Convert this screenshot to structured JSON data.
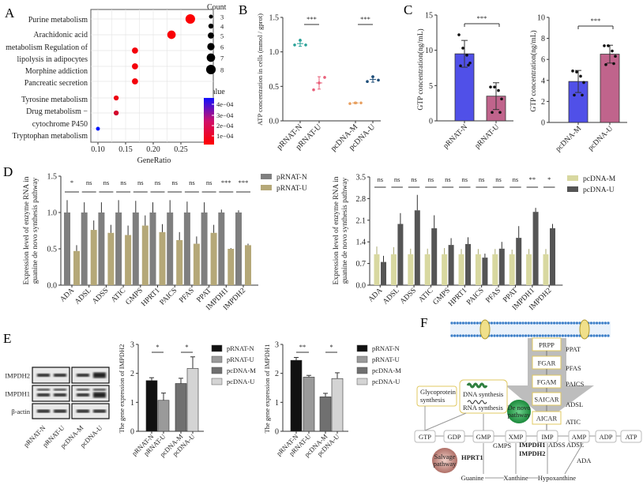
{
  "panels": {
    "A": "A",
    "B": "B",
    "C": "C",
    "D": "D",
    "E": "E",
    "F": "F"
  },
  "chart_data": [
    {
      "type": "scatter",
      "panel": "A",
      "xlabel": "GeneRatio",
      "xticks": [
        "0.10",
        "0.15",
        "0.20",
        "0.25"
      ],
      "xlim": [
        0.095,
        0.28
      ],
      "grid": true,
      "y_label_lines": [
        "Purine metabolism",
        "Arachidonic acid",
        "metabolism Regulation of",
        "lipolysis in adipocytes",
        "Morphine addiction",
        "Pancreatic secretion",
        "Tyrosine metabolism",
        "Drug metabolism −",
        "cytochrome P450",
        "Tryptophan metabolism"
      ],
      "points": [
        {
          "term": "Purine metabolism",
          "x": 0.267,
          "count": 8,
          "pvalue": 5e-06
        },
        {
          "term": "Arachidonic acid metabolism",
          "x": 0.233,
          "count": 7,
          "pvalue": 1e-05
        },
        {
          "term": "Regulation of lipolysis in adipocytes",
          "x": 0.167,
          "count": 5,
          "pvalue": 2e-05
        },
        {
          "term": "Morphine addiction",
          "x": 0.167,
          "count": 5,
          "pvalue": 2e-05
        },
        {
          "term": "Pancreatic secretion",
          "x": 0.167,
          "count": 5,
          "pvalue": 2e-05
        },
        {
          "term": "Tyrosine metabolism",
          "x": 0.133,
          "count": 4,
          "pvalue": 3e-05
        },
        {
          "term": "Drug metabolism - cytochrome P450",
          "x": 0.133,
          "count": 4,
          "pvalue": 8e-05
        },
        {
          "term": "Tryptophan metabolism",
          "x": 0.1,
          "count": 3,
          "pvalue": 0.00046
        }
      ],
      "size_legend": {
        "title": "Count",
        "values": [
          "3",
          "4",
          "5",
          "6",
          "7",
          "8"
        ]
      },
      "color_legend": {
        "title": "pvalue",
        "ticks": [
          "4e−04",
          "3e−04",
          "2e−04",
          "1e−04"
        ],
        "low_color": "#ff0000",
        "high_color": "#0000ff"
      },
      "legend_position": "right"
    },
    {
      "type": "scatter",
      "panel": "B",
      "ylabel": "ATP concentration in cells (mmol / gprot)",
      "ylim": [
        0,
        1.5
      ],
      "yticks": [
        "0.0",
        "0.5",
        "1.0",
        "1.5"
      ],
      "categories": [
        "pRNAT-N",
        "pRNAT-U",
        "pcDNA-M",
        "pcDNA-U"
      ],
      "points": [
        [
          1.1,
          1.17,
          1.1
        ],
        [
          0.45,
          0.55,
          0.63
        ],
        [
          0.25,
          0.26,
          0.26
        ],
        [
          0.57,
          0.64,
          0.59
        ]
      ],
      "means": [
        1.12,
        0.55,
        0.26,
        0.6
      ],
      "sd": [
        0.04,
        0.09,
        0.01,
        0.04
      ],
      "colors": [
        "#2aa198",
        "#e8607a",
        "#e8a060",
        "#1f4e79"
      ],
      "significance": [
        {
          "pair": [
            "pRNAT-N",
            "pRNAT-U"
          ],
          "label": "***"
        },
        {
          "pair": [
            "pcDNA-M",
            "pcDNA-U"
          ],
          "label": "***"
        }
      ]
    },
    {
      "type": "bar",
      "panel": "C",
      "ylabel": "GTP concentration(ng/mL)",
      "ylim": [
        0,
        15
      ],
      "yticks": [
        "0",
        "5",
        "10",
        "15"
      ],
      "categories": [
        "pRNAT-N",
        "pRNAT-U"
      ],
      "values": [
        9.5,
        3.5
      ],
      "sd": [
        1.9,
        1.9
      ],
      "points": [
        [
          12.2,
          10.3,
          9.3,
          8.2,
          7.8,
          7.9
        ],
        [
          4.8,
          4.8,
          4.3,
          3.1,
          1.2,
          1.2
        ]
      ],
      "colors": [
        "#5050e8",
        "#c0648c"
      ],
      "significance": [
        {
          "pair": [
            "pRNAT-N",
            "pRNAT-U"
          ],
          "label": "***"
        }
      ]
    },
    {
      "type": "bar",
      "panel": "C",
      "ylabel": "GTP concentration(ng/mL)",
      "ylim": [
        0,
        10
      ],
      "yticks": [
        "0",
        "2",
        "4",
        "6",
        "8",
        "10"
      ],
      "categories": [
        "pcDNA-M",
        "pcDNA-U"
      ],
      "values": [
        3.9,
        6.5
      ],
      "sd": [
        1.05,
        0.85
      ],
      "points": [
        [
          4.9,
          4.8,
          4.4,
          3.8,
          2.6,
          2.6
        ],
        [
          7.3,
          7.3,
          6.8,
          6.3,
          5.5,
          5.6
        ]
      ],
      "colors": [
        "#5050e8",
        "#c0648c"
      ],
      "significance": [
        {
          "pair": [
            "pcDNA-M",
            "pcDNA-U"
          ],
          "label": "***"
        }
      ]
    },
    {
      "type": "bar",
      "panel": "D",
      "ylabel_lines": [
        "Expression level of enzyme RNA in",
        "guanine de novo synthesis pathway"
      ],
      "ylim": [
        0,
        1.5
      ],
      "yticks": [
        "0.0",
        "0.5",
        "1.0",
        "1.5"
      ],
      "categories": [
        "ADA",
        "ADSL",
        "ADSS",
        "ATIC",
        "GMPS",
        "HPRT1",
        "PAICS",
        "PFAS",
        "PPAT",
        "IMPDH1",
        "IMPDH2"
      ],
      "series": [
        {
          "name": "pRNAT-N",
          "color": "#7f7f7f",
          "values": [
            1,
            1,
            1,
            1,
            1,
            1,
            1,
            1,
            1,
            1,
            1
          ],
          "err": [
            0.17,
            0.14,
            0.14,
            0.17,
            0.16,
            0.14,
            0.17,
            0.15,
            0.14,
            0.04,
            0.03
          ]
        },
        {
          "name": "pRNAT-U",
          "color": "#b5a878",
          "values": [
            0.47,
            0.76,
            0.72,
            0.69,
            0.82,
            0.73,
            0.62,
            0.57,
            0.72,
            0.5,
            0.55
          ],
          "err": [
            0.08,
            0.13,
            0.11,
            0.13,
            0.14,
            0.11,
            0.11,
            0.1,
            0.11,
            0.01,
            0.02
          ]
        }
      ],
      "significance": [
        "*",
        "ns",
        "ns",
        "ns",
        "ns",
        "ns",
        "ns",
        "ns",
        "ns",
        "***",
        "***"
      ],
      "legend_position": "right"
    },
    {
      "type": "bar",
      "panel": "D",
      "ylabel_lines": [
        "Expression level of enzyme RNA in",
        "guanine de novo synthesis pathway"
      ],
      "ylim": [
        0,
        3.5
      ],
      "yticks": [
        "0.0",
        "0.7",
        "1.4",
        "2.1",
        "2.8",
        "3.5"
      ],
      "categories": [
        "ADA",
        "ADSL",
        "ADSS",
        "ATIC",
        "GMPS",
        "HPRT1",
        "PAICS",
        "PFAS",
        "PPAT",
        "IMPDH1",
        "IMPDH2"
      ],
      "series": [
        {
          "name": "pcDNA-M",
          "color": "#d8d8a0",
          "values": [
            1,
            1,
            1,
            1,
            1,
            1,
            1,
            1,
            1,
            1,
            1
          ],
          "err": [
            0.25,
            0.23,
            0.18,
            0.18,
            0.2,
            0.17,
            0.17,
            0.17,
            0.15,
            0.17,
            0.17
          ]
        },
        {
          "name": "pcDNA-U",
          "color": "#555555",
          "values": [
            0.75,
            1.98,
            2.42,
            1.84,
            1.3,
            1.33,
            0.89,
            1.18,
            1.53,
            2.37,
            1.84
          ],
          "err": [
            0.2,
            0.35,
            0.5,
            0.42,
            0.22,
            0.22,
            0.13,
            0.22,
            0.38,
            0.13,
            0.14
          ]
        }
      ],
      "significance": [
        "ns",
        "ns",
        "ns",
        "ns",
        "ns",
        "ns",
        "ns",
        "ns",
        "ns",
        "**",
        "*"
      ],
      "legend_position": "right"
    },
    {
      "type": "bar",
      "panel": "E",
      "ylabel": "The gene expression of IMPDH2",
      "ylim": [
        0,
        3
      ],
      "yticks": [
        "0",
        "1",
        "2",
        "3"
      ],
      "categories": [
        "pRNAT-N",
        "pRNAT-U",
        "pcDNA-M",
        "pcDNA-U"
      ],
      "values": [
        1.75,
        1.07,
        1.65,
        2.17
      ],
      "err": [
        0.1,
        0.25,
        0.18,
        0.4
      ],
      "colors": [
        "#111111",
        "#9a9a9a",
        "#707070",
        "#d4d4d4"
      ],
      "significance": [
        {
          "pair": [
            0,
            1
          ],
          "label": "*"
        },
        {
          "pair": [
            2,
            3
          ],
          "label": "*"
        }
      ],
      "legend_position": "right"
    },
    {
      "type": "bar",
      "panel": "E",
      "ylabel": "The gene expression of IMPDH1",
      "ylim": [
        0,
        3
      ],
      "yticks": [
        "0",
        "1",
        "2",
        "3"
      ],
      "categories": [
        "pRNAT-N",
        "pRNAT-U",
        "pcDNA-M",
        "pcDNA-U"
      ],
      "values": [
        2.45,
        1.87,
        1.19,
        1.82
      ],
      "err": [
        0.1,
        0.06,
        0.12,
        0.2
      ],
      "colors": [
        "#111111",
        "#9a9a9a",
        "#707070",
        "#d4d4d4"
      ],
      "significance": [
        {
          "pair": [
            0,
            1
          ],
          "label": "**"
        },
        {
          "pair": [
            2,
            3
          ],
          "label": "*"
        }
      ],
      "legend_position": "right"
    }
  ],
  "blot": {
    "rows": [
      "IMPDH2",
      "IMPDH1",
      "β-actin"
    ],
    "lanes": [
      "pRNAT-N",
      "pRNAT-U",
      "pcDNA-M",
      "pcDNA-U"
    ]
  },
  "pathway": {
    "chain": [
      "PRPP",
      "FGAR",
      "FGAM",
      "SAICAR",
      "AICAR"
    ],
    "chain_enzymes": [
      "PPAT",
      "PFAS",
      "PAICS",
      "ADSL",
      "ATIC"
    ],
    "row": [
      "GTP",
      "GDP",
      "GMP",
      "XMP",
      "IMP",
      "AMP",
      "ADP",
      "ATP"
    ],
    "glyco": [
      "Glycoprotein",
      "synthesis"
    ],
    "dna": "DNA synthesis",
    "rna": "RNA synthesis",
    "denovo": [
      "De novo",
      "pathway"
    ],
    "salvage": [
      "Salvage",
      "pathway"
    ],
    "hprt1": "HPRT1",
    "impdh1": "IMPDH1",
    "impdh2": "IMPDH2",
    "gmps": "GMPS",
    "adss": "ADSS",
    "adsl": "ADSL",
    "ada": "ADA",
    "bases": [
      "Guanine",
      "Xanthine",
      "Hypoxanthine"
    ],
    "highlight_color": "#e02020"
  }
}
